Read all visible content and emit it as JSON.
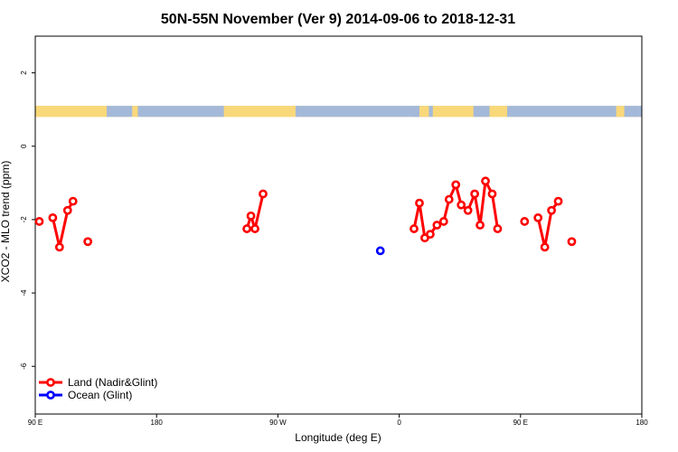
{
  "chart_data": {
    "type": "line",
    "title": "50N-55N November (Ver 9)   2014-09-06 to 2018-12-31",
    "xlabel": "Longitude (deg E)",
    "ylabel": "XCO2 - MLO trend (ppm)",
    "xlim": [
      90,
      540
    ],
    "ylim": [
      -7.3,
      3
    ],
    "x_ticks": [
      {
        "value": 90,
        "label": "90 E"
      },
      {
        "value": 180,
        "label": "180"
      },
      {
        "value": 270,
        "label": "90 W"
      },
      {
        "value": 360,
        "label": "0"
      },
      {
        "value": 450,
        "label": "90 E"
      },
      {
        "value": 540,
        "label": "180"
      }
    ],
    "y_ticks": [
      {
        "value": 2,
        "label": "2"
      },
      {
        "value": 0,
        "label": "0"
      },
      {
        "value": -2,
        "label": "-2"
      },
      {
        "value": -4,
        "label": "-4"
      },
      {
        "value": -6,
        "label": "-6"
      }
    ],
    "land_ocean_band": {
      "y_range": [
        0.8,
        1.1
      ],
      "land_color": "#f9d87a",
      "ocean_color": "#a4b9d9",
      "ocean_intervals": [
        [
          143,
          162
        ],
        [
          166,
          230
        ],
        [
          283,
          375
        ],
        [
          370,
          385
        ],
        [
          415,
          427
        ],
        [
          440,
          540
        ]
      ],
      "land_intervals": [
        [
          90,
          143
        ],
        [
          162,
          166
        ],
        [
          230,
          283
        ],
        [
          375,
          382
        ],
        [
          385,
          415
        ],
        [
          427,
          440
        ],
        [
          521,
          527
        ]
      ]
    },
    "series": [
      {
        "name": "Land (Nadir&Glint)",
        "color": "#ff0000",
        "segments": [
          [
            [
              93,
              -2.05
            ]
          ],
          [
            [
              103,
              -1.95
            ],
            [
              108,
              -2.75
            ],
            [
              114,
              -1.75
            ],
            [
              118,
              -1.5
            ]
          ],
          [
            [
              129,
              -2.6
            ]
          ],
          [
            [
              247,
              -2.25
            ],
            [
              250,
              -1.9
            ],
            [
              253,
              -2.25
            ],
            [
              259,
              -1.3
            ]
          ],
          [
            [
              371,
              -2.25
            ],
            [
              375,
              -1.55
            ],
            [
              379,
              -2.5
            ],
            [
              383,
              -2.4
            ],
            [
              388,
              -2.15
            ],
            [
              393,
              -2.05
            ],
            [
              397,
              -1.45
            ],
            [
              402,
              -1.05
            ],
            [
              406,
              -1.6
            ],
            [
              411,
              -1.75
            ],
            [
              416,
              -1.3
            ],
            [
              420,
              -2.15
            ],
            [
              424,
              -0.95
            ],
            [
              429,
              -1.3
            ],
            [
              433,
              -2.25
            ]
          ],
          [
            [
              453,
              -2.05
            ]
          ],
          [
            [
              463,
              -1.95
            ],
            [
              468,
              -2.75
            ],
            [
              473,
              -1.75
            ],
            [
              478,
              -1.5
            ]
          ],
          [
            [
              488,
              -2.6
            ]
          ]
        ]
      },
      {
        "name": "Ocean (Glint)",
        "color": "#0000ff",
        "segments": [
          [
            [
              346,
              -2.85
            ]
          ]
        ]
      }
    ],
    "legend_position": "bottom-left",
    "grid": false
  }
}
